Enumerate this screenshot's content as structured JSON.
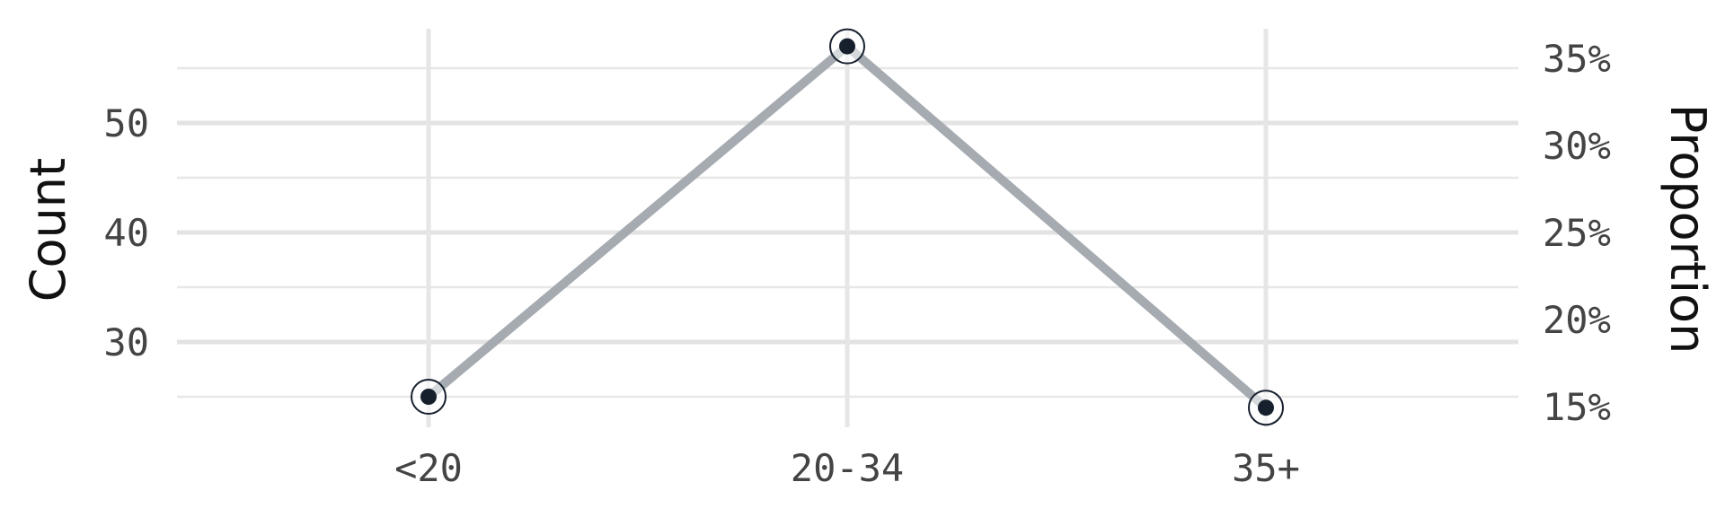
{
  "chart_data": {
    "type": "line",
    "categories": [
      "<20",
      "20-34",
      "35+"
    ],
    "series": [
      {
        "values": [
          25,
          57,
          24
        ]
      }
    ],
    "ylabel": "Count",
    "ylabel_right": "Proportion",
    "ylim": [
      21.5,
      60.5
    ],
    "y_ticks": [
      30,
      40,
      50
    ],
    "y_tick_labels": [
      "30",
      "40",
      "50"
    ],
    "y2_ticks": [
      15,
      20,
      25,
      30,
      35
    ],
    "y2_tick_labels": [
      "15%",
      "20%",
      "25%",
      "30%",
      "35%"
    ],
    "grid": true,
    "colors": {
      "line": "#a0a7ad",
      "marker": "#16202d",
      "marker_ring": "#16202d"
    }
  }
}
